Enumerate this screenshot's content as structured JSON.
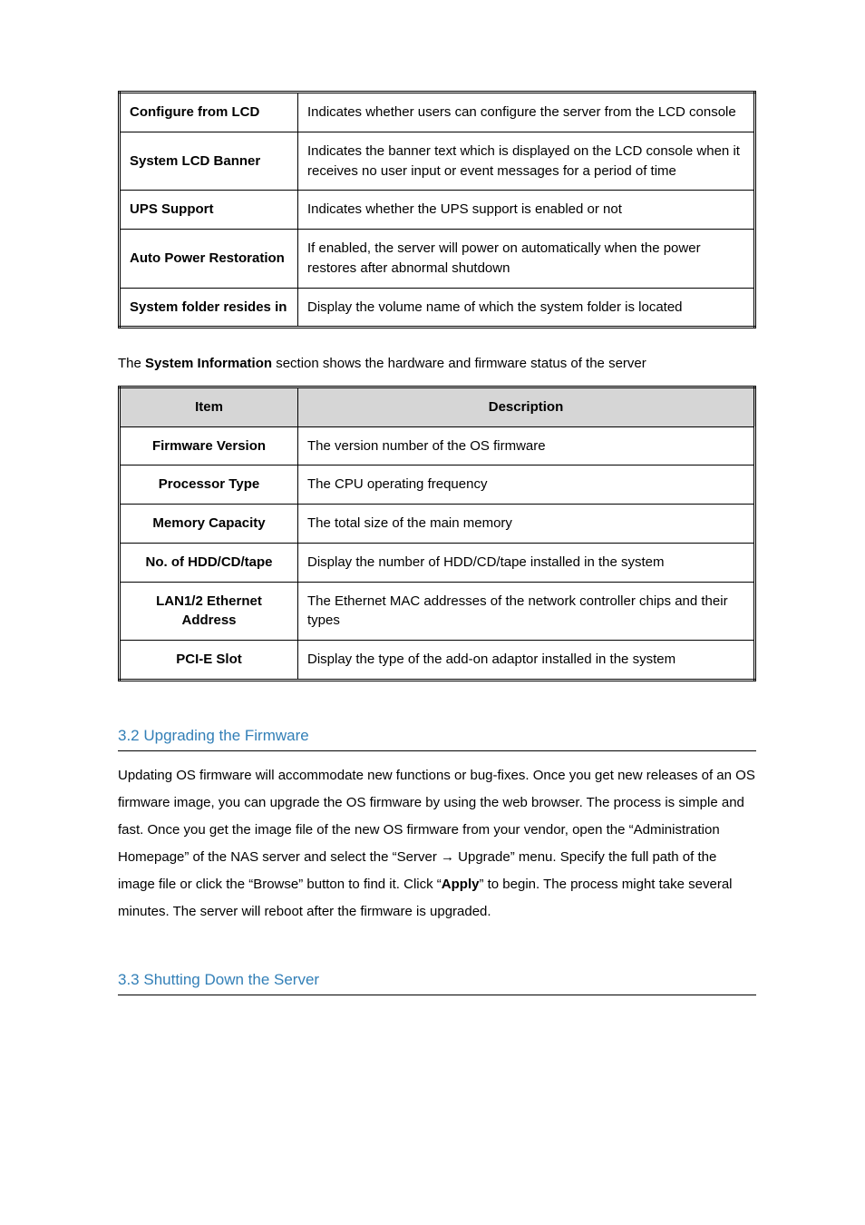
{
  "table1": {
    "rows": [
      {
        "label": "Configure from LCD",
        "desc": "Indicates whether users can configure the server from the LCD console",
        "label_align": "left",
        "justify": true
      },
      {
        "label": "System LCD Banner",
        "desc": "Indicates the banner text which is displayed on the LCD console when it receives no user input or event messages for a period of time",
        "label_align": "left",
        "justify": true
      },
      {
        "label": "UPS Support",
        "desc": "Indicates whether the UPS support is enabled or not",
        "label_align": "left",
        "justify": false
      },
      {
        "label": "Auto Power Restoration",
        "desc": "If enabled, the server will power on automatically when the power restores after abnormal shutdown",
        "label_align": "left",
        "justify": true
      },
      {
        "label": "System folder resides in",
        "desc": "Display the volume name of which the system folder is located",
        "label_align": "left",
        "justify": false
      }
    ]
  },
  "intro_para": {
    "prefix": "The ",
    "bold": "System Information",
    "suffix": " section shows the hardware and firmware status of the server"
  },
  "table2": {
    "header_item": "Item",
    "header_desc": "Description",
    "rows": [
      {
        "label": "Firmware Version",
        "desc": "The version number of the OS firmware",
        "label_align": "center",
        "justify": false
      },
      {
        "label": "Processor Type",
        "desc": "The CPU operating frequency",
        "label_align": "center",
        "justify": false
      },
      {
        "label": "Memory Capacity",
        "desc": "The total size of the main memory",
        "label_align": "center",
        "justify": false
      },
      {
        "label": "No. of HDD/CD/tape",
        "desc": "Display the number of HDD/CD/tape installed in the system",
        "label_align": "center",
        "justify": false
      },
      {
        "label": "LAN1/2 Ethernet Address",
        "desc": "The Ethernet MAC addresses of the network controller chips and their types",
        "label_align": "center",
        "justify": true
      },
      {
        "label": "PCI-E Slot",
        "desc": "Display the type of the add-on adaptor installed in the system",
        "label_align": "center",
        "justify": false
      }
    ]
  },
  "section32": {
    "heading": "3.2 Upgrading the Firmware",
    "body_pre": "Updating OS firmware will accommodate new functions or bug-fixes. Once you get new releases of an OS firmware image, you can upgrade the OS firmware by using the web browser. The process is simple and fast. Once you get the image file of the new OS firmware from your vendor, open the “Administration Homepage” of the NAS server and select the “Server → Upgrade” menu. Specify the full path of the image file or click the “Browse” button to find it. Click “",
    "body_bold": "Apply",
    "body_post": "” to begin. The process might take several minutes. The server will reboot after the firmware is upgraded."
  },
  "section33": {
    "heading": "3.3 Shutting Down the Server"
  },
  "colors": {
    "heading": "#327fb7",
    "header_bg": "#d6d6d6",
    "border": "#000000",
    "text": "#000000",
    "bg": "#ffffff"
  },
  "typography": {
    "body_fontsize": 15,
    "heading_fontsize": 17,
    "font_family": "Arial"
  }
}
